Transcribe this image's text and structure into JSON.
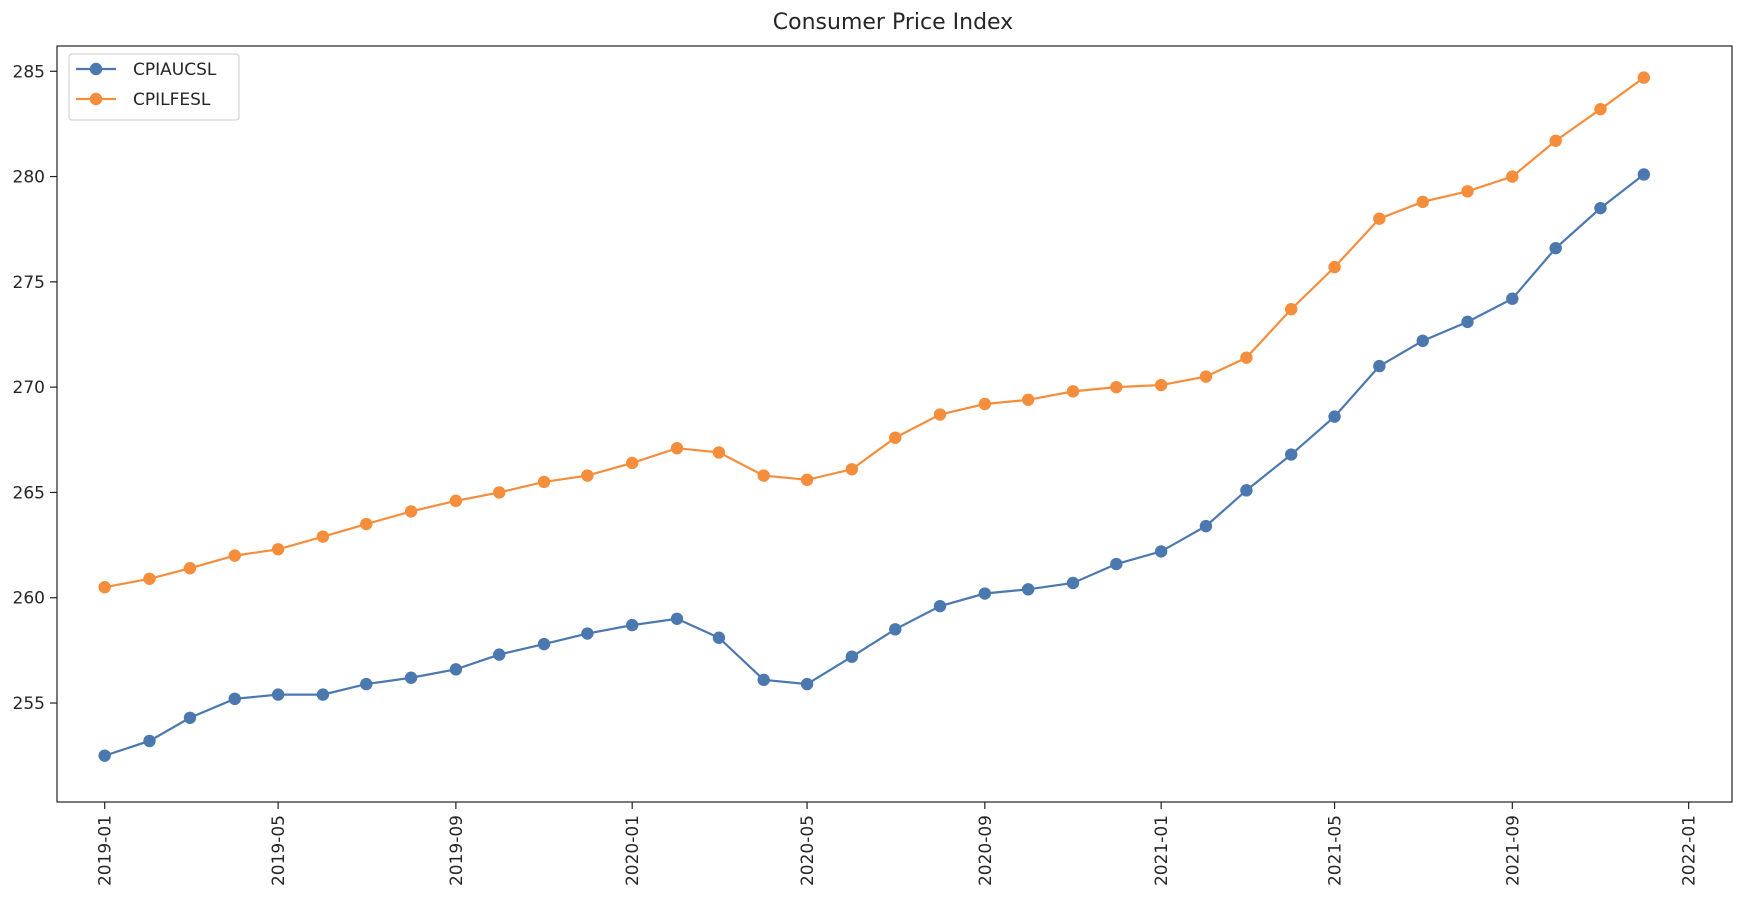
{
  "chart_data": {
    "type": "line",
    "title": "Consumer Price Index",
    "xlabel": "",
    "ylabel": "",
    "ylim": [
      250.3,
      286.2
    ],
    "xlim": [
      "2018-11-29",
      "2022-01-31"
    ],
    "grid": false,
    "legend_position": "top-left",
    "x": [
      "2019-01",
      "2019-02",
      "2019-03",
      "2019-04",
      "2019-05",
      "2019-06",
      "2019-07",
      "2019-08",
      "2019-09",
      "2019-10",
      "2019-11",
      "2019-12",
      "2020-01",
      "2020-02",
      "2020-03",
      "2020-04",
      "2020-05",
      "2020-06",
      "2020-07",
      "2020-08",
      "2020-09",
      "2020-10",
      "2020-11",
      "2020-12",
      "2021-01",
      "2021-02",
      "2021-03",
      "2021-04",
      "2021-05",
      "2021-06",
      "2021-07",
      "2021-08",
      "2021-09",
      "2021-10",
      "2021-11",
      "2021-12"
    ],
    "x_ticks": [
      "2019-01",
      "2019-05",
      "2019-09",
      "2020-01",
      "2020-05",
      "2020-09",
      "2021-01",
      "2021-05",
      "2021-09",
      "2022-01"
    ],
    "y_ticks": [
      255,
      260,
      265,
      270,
      275,
      280,
      285
    ],
    "series": [
      {
        "name": "CPIAUCSL",
        "color": "#4c78b0",
        "values": [
          252.5,
          253.2,
          254.3,
          255.2,
          255.4,
          255.4,
          255.9,
          256.2,
          256.6,
          257.3,
          257.8,
          258.3,
          258.7,
          259.0,
          258.1,
          256.1,
          255.9,
          257.2,
          258.5,
          259.6,
          260.2,
          260.4,
          260.7,
          261.6,
          262.2,
          263.4,
          265.1,
          266.8,
          268.6,
          271.0,
          272.2,
          273.1,
          274.2,
          276.6,
          278.5,
          280.1
        ]
      },
      {
        "name": "CPILFESL",
        "color": "#f58e3c",
        "values": [
          260.5,
          260.9,
          261.4,
          262.0,
          262.3,
          262.9,
          263.5,
          264.1,
          264.6,
          265.0,
          265.5,
          265.8,
          266.4,
          267.1,
          266.9,
          265.8,
          265.6,
          266.1,
          267.6,
          268.7,
          269.2,
          269.4,
          269.8,
          270.0,
          270.1,
          270.5,
          271.4,
          273.7,
          275.7,
          278.0,
          278.8,
          279.3,
          280.0,
          281.7,
          283.2,
          284.7
        ]
      }
    ]
  }
}
